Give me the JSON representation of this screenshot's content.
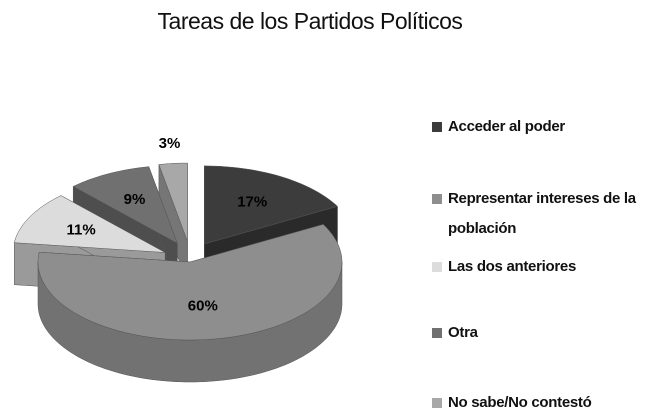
{
  "chart_data": {
    "type": "pie",
    "title": "Tareas de los Partidos Políticos",
    "categories": [
      "Acceder al poder",
      "Representar intereses de la población",
      "Las dos anteriores",
      "Otra",
      "No sabe/No contestó"
    ],
    "values": [
      17,
      60,
      11,
      9,
      3
    ],
    "value_labels": [
      "17%",
      "60%",
      "11%",
      "9%",
      "3%"
    ],
    "colors": [
      "#3c3c3c",
      "#8e8e8e",
      "#dcdcdc",
      "#707070",
      "#a8a8a8"
    ]
  }
}
